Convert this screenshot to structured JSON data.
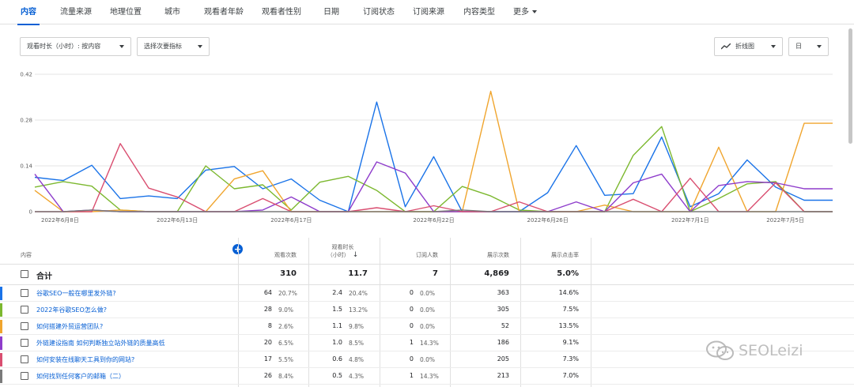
{
  "tabs": [
    {
      "label": "内容",
      "active": true
    },
    {
      "label": "流量来源"
    },
    {
      "label": "地理位置"
    },
    {
      "label": "城市"
    },
    {
      "label": "观看者年龄"
    },
    {
      "label": "观看者性别"
    },
    {
      "label": "日期"
    },
    {
      "label": "订阅状态"
    },
    {
      "label": "订阅来源"
    },
    {
      "label": "内容类型"
    },
    {
      "label": "更多"
    }
  ],
  "controls": {
    "metric": "观看时长（小时）: 按内容",
    "secondary": "选择次要指标",
    "chart_type": "折线图",
    "period": "日"
  },
  "chart_data": {
    "type": "line",
    "x": [
      "2022年6月8日",
      "2022年6月9日",
      "2022年6月10日",
      "2022年6月11日",
      "2022年6月12日",
      "2022年6月13日",
      "2022年6月14日",
      "2022年6月15日",
      "2022年6月16日",
      "2022年6月17日",
      "2022年6月18日",
      "2022年6月19日",
      "2022年6月20日",
      "2022年6月21日",
      "2022年6月22日",
      "2022年6月23日",
      "2022年6月24日",
      "2022年6月25日",
      "2022年6月26日",
      "2022年6月27日",
      "2022年6月28日",
      "2022年6月29日",
      "2022年6月30日",
      "2022年7月1日",
      "2022年7月2日",
      "2022年7月3日",
      "2022年7月4日",
      "2022年7月5日",
      "2022年7月6日"
    ],
    "x_ticks": [
      "2022年6月8日",
      "2022年6月13日",
      "2022年6月17日",
      "2022年6月22日",
      "2022年6月26日",
      "2022年7月1日",
      "2022年7月5日"
    ],
    "y_ticks": [
      "0",
      "0.14",
      "0.28",
      "0.42"
    ],
    "ylim": [
      0,
      0.42
    ],
    "grid": true,
    "series": [
      {
        "color": "#1a73e8",
        "values": [
          0.105,
          0.095,
          0.142,
          0.04,
          0.048,
          0.04,
          0.127,
          0.138,
          0.07,
          0.1,
          0.035,
          0.0,
          0.335,
          0.015,
          0.168,
          0.0,
          0.0,
          0.0,
          0.058,
          0.202,
          0.05,
          0.055,
          0.228,
          0.015,
          0.055,
          0.158,
          0.075,
          0.035,
          0.035
        ]
      },
      {
        "color": "#7cb82f",
        "values": [
          0.075,
          0.092,
          0.078,
          0.005,
          0.0,
          0.0,
          0.14,
          0.07,
          0.082,
          0.005,
          0.09,
          0.108,
          0.065,
          0.0,
          0.0,
          0.077,
          0.048,
          0.005,
          0.0,
          0.0,
          0.0,
          0.172,
          0.26,
          0.0,
          0.04,
          0.085,
          0.092,
          0.0,
          0.0
        ]
      },
      {
        "color": "#f0a52e",
        "values": [
          0.065,
          0.0,
          0.0,
          0.005,
          0.0,
          0.0,
          0.0,
          0.1,
          0.125,
          0.0,
          0.0,
          0.0,
          0.0,
          0.0,
          0.0,
          0.0,
          0.368,
          0.0,
          0.0,
          0.0,
          0.02,
          0.0,
          0.0,
          0.0,
          0.197,
          0.0,
          0.0,
          0.27,
          0.27
        ]
      },
      {
        "color": "#8e3ccb",
        "values": [
          0.115,
          0.0,
          0.005,
          0.0,
          0.0,
          0.0,
          0.0,
          0.0,
          0.005,
          0.045,
          0.0,
          0.0,
          0.152,
          0.118,
          0.0,
          0.0,
          0.0,
          0.0,
          0.0,
          0.03,
          0.0,
          0.088,
          0.115,
          0.0,
          0.08,
          0.092,
          0.088,
          0.07,
          0.07
        ]
      },
      {
        "color": "#d94e70",
        "values": [
          0.0,
          0.0,
          0.0,
          0.208,
          0.072,
          0.045,
          0.0,
          0.0,
          0.04,
          0.0,
          0.0,
          0.0,
          0.012,
          0.0,
          0.018,
          0.0,
          0.0,
          0.03,
          0.0,
          0.0,
          0.0,
          0.038,
          0.0,
          0.102,
          0.0,
          0.0,
          0.088,
          0.0,
          0.0
        ]
      },
      {
        "color": "#7a7a7a",
        "values": [
          0.0,
          0.0,
          0.005,
          0.0,
          0.0,
          0.0,
          0.0,
          0.0,
          0.0,
          0.0,
          0.0,
          0.0,
          0.0,
          0.0,
          0.0,
          0.005,
          0.0,
          0.0,
          0.0,
          0.0,
          0.0,
          0.0,
          0.0,
          0.0,
          0.0,
          0.0,
          0.0,
          0.0,
          0.0
        ]
      }
    ]
  },
  "table": {
    "headers": {
      "content": "内容",
      "views": "观看次数",
      "watch_time_l1": "观看时长",
      "watch_time_l2": "（小时）",
      "subscribers": "订阅人数",
      "impressions": "展示次数",
      "ctr": "展示点击率"
    },
    "total": {
      "label": "合计",
      "views": "310",
      "watch": "11.7",
      "subs": "7",
      "impr": "4,869",
      "ctr": "5.0%"
    },
    "rows": [
      {
        "title": "谷歌SEO一般在哪里发外链?",
        "views": "64",
        "views_pct": "20.7%",
        "watch": "2.4",
        "watch_pct": "20.4%",
        "subs": "0",
        "subs_pct": "0.0%",
        "impr": "363",
        "ctr": "14.6%",
        "color": "#1a73e8"
      },
      {
        "title": "2022年谷歌SEO怎么做?",
        "views": "28",
        "views_pct": "9.0%",
        "watch": "1.5",
        "watch_pct": "13.2%",
        "subs": "0",
        "subs_pct": "0.0%",
        "impr": "305",
        "ctr": "7.5%",
        "color": "#7cb82f"
      },
      {
        "title": "如何搭建外贸运营团队?",
        "views": "8",
        "views_pct": "2.6%",
        "watch": "1.1",
        "watch_pct": "9.8%",
        "subs": "0",
        "subs_pct": "0.0%",
        "impr": "52",
        "ctr": "13.5%",
        "color": "#f0a52e"
      },
      {
        "title": "外链建设指南 如何判断独立站外链的质量高低",
        "views": "20",
        "views_pct": "6.5%",
        "watch": "1.0",
        "watch_pct": "8.5%",
        "subs": "1",
        "subs_pct": "14.3%",
        "impr": "186",
        "ctr": "9.1%",
        "color": "#8e3ccb"
      },
      {
        "title": "如何安装在线聊天工具到你的网站?",
        "views": "17",
        "views_pct": "5.5%",
        "watch": "0.6",
        "watch_pct": "4.8%",
        "subs": "0",
        "subs_pct": "0.0%",
        "impr": "205",
        "ctr": "7.3%",
        "color": "#d94e70"
      },
      {
        "title": "如何找到任何客户的邮箱（二）",
        "views": "26",
        "views_pct": "8.4%",
        "watch": "0.5",
        "watch_pct": "4.3%",
        "subs": "1",
        "subs_pct": "14.3%",
        "impr": "213",
        "ctr": "7.0%",
        "color": "#7a7a7a"
      }
    ]
  },
  "watermark": "SEOLeizi"
}
